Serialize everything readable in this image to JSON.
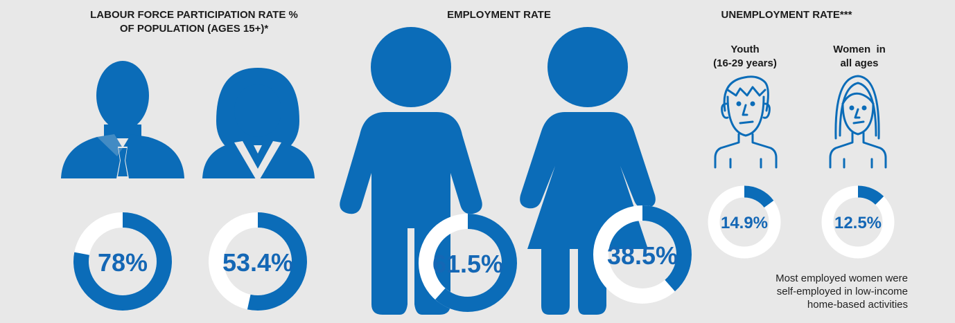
{
  "colors": {
    "accent": "#0b6cb8",
    "ring_track": "#ffffff",
    "label": "#1467b5",
    "background": "#e8e8e8"
  },
  "sections": [
    {
      "title_line1": "LABOUR FORCE PARTICIPATION RATE %",
      "title_line2": "OF POPULATION (AGES 15+)*"
    },
    {
      "title_line1": "EMPLOYMENT RATE"
    },
    {
      "title_line1": "UNEMPLOYMENT RATE***"
    }
  ],
  "subgroups": {
    "youth": {
      "line1": "Youth",
      "line2": "(16-29 years)",
      "icon": "young-man-outline-icon"
    },
    "women": {
      "line1": "Women  in",
      "line2": "all ages",
      "icon": "young-woman-outline-icon"
    }
  },
  "note": [
    "Most employed women were",
    "self-employed in low-income",
    "home-based activities"
  ],
  "chart_data": [
    {
      "type": "pie",
      "title": "LABOUR FORCE PARTICIPATION RATE % OF POPULATION (AGES 15+)*",
      "series": [
        {
          "name": "men",
          "value": 78,
          "label": "78%"
        },
        {
          "name": "women",
          "value": 53.4,
          "label": "53.4%"
        }
      ]
    },
    {
      "type": "pie",
      "title": "EMPLOYMENT RATE",
      "series": [
        {
          "name": "men",
          "value": 61.5,
          "label": "61.5%"
        },
        {
          "name": "women",
          "value": 38.5,
          "label": "38.5%"
        }
      ]
    },
    {
      "type": "pie",
      "title": "UNEMPLOYMENT RATE***",
      "series": [
        {
          "name": "Youth (16-29 years)",
          "value": 14.9,
          "label": "14.9%"
        },
        {
          "name": "Women in all ages",
          "value": 12.5,
          "label": "12.5%"
        }
      ]
    }
  ]
}
